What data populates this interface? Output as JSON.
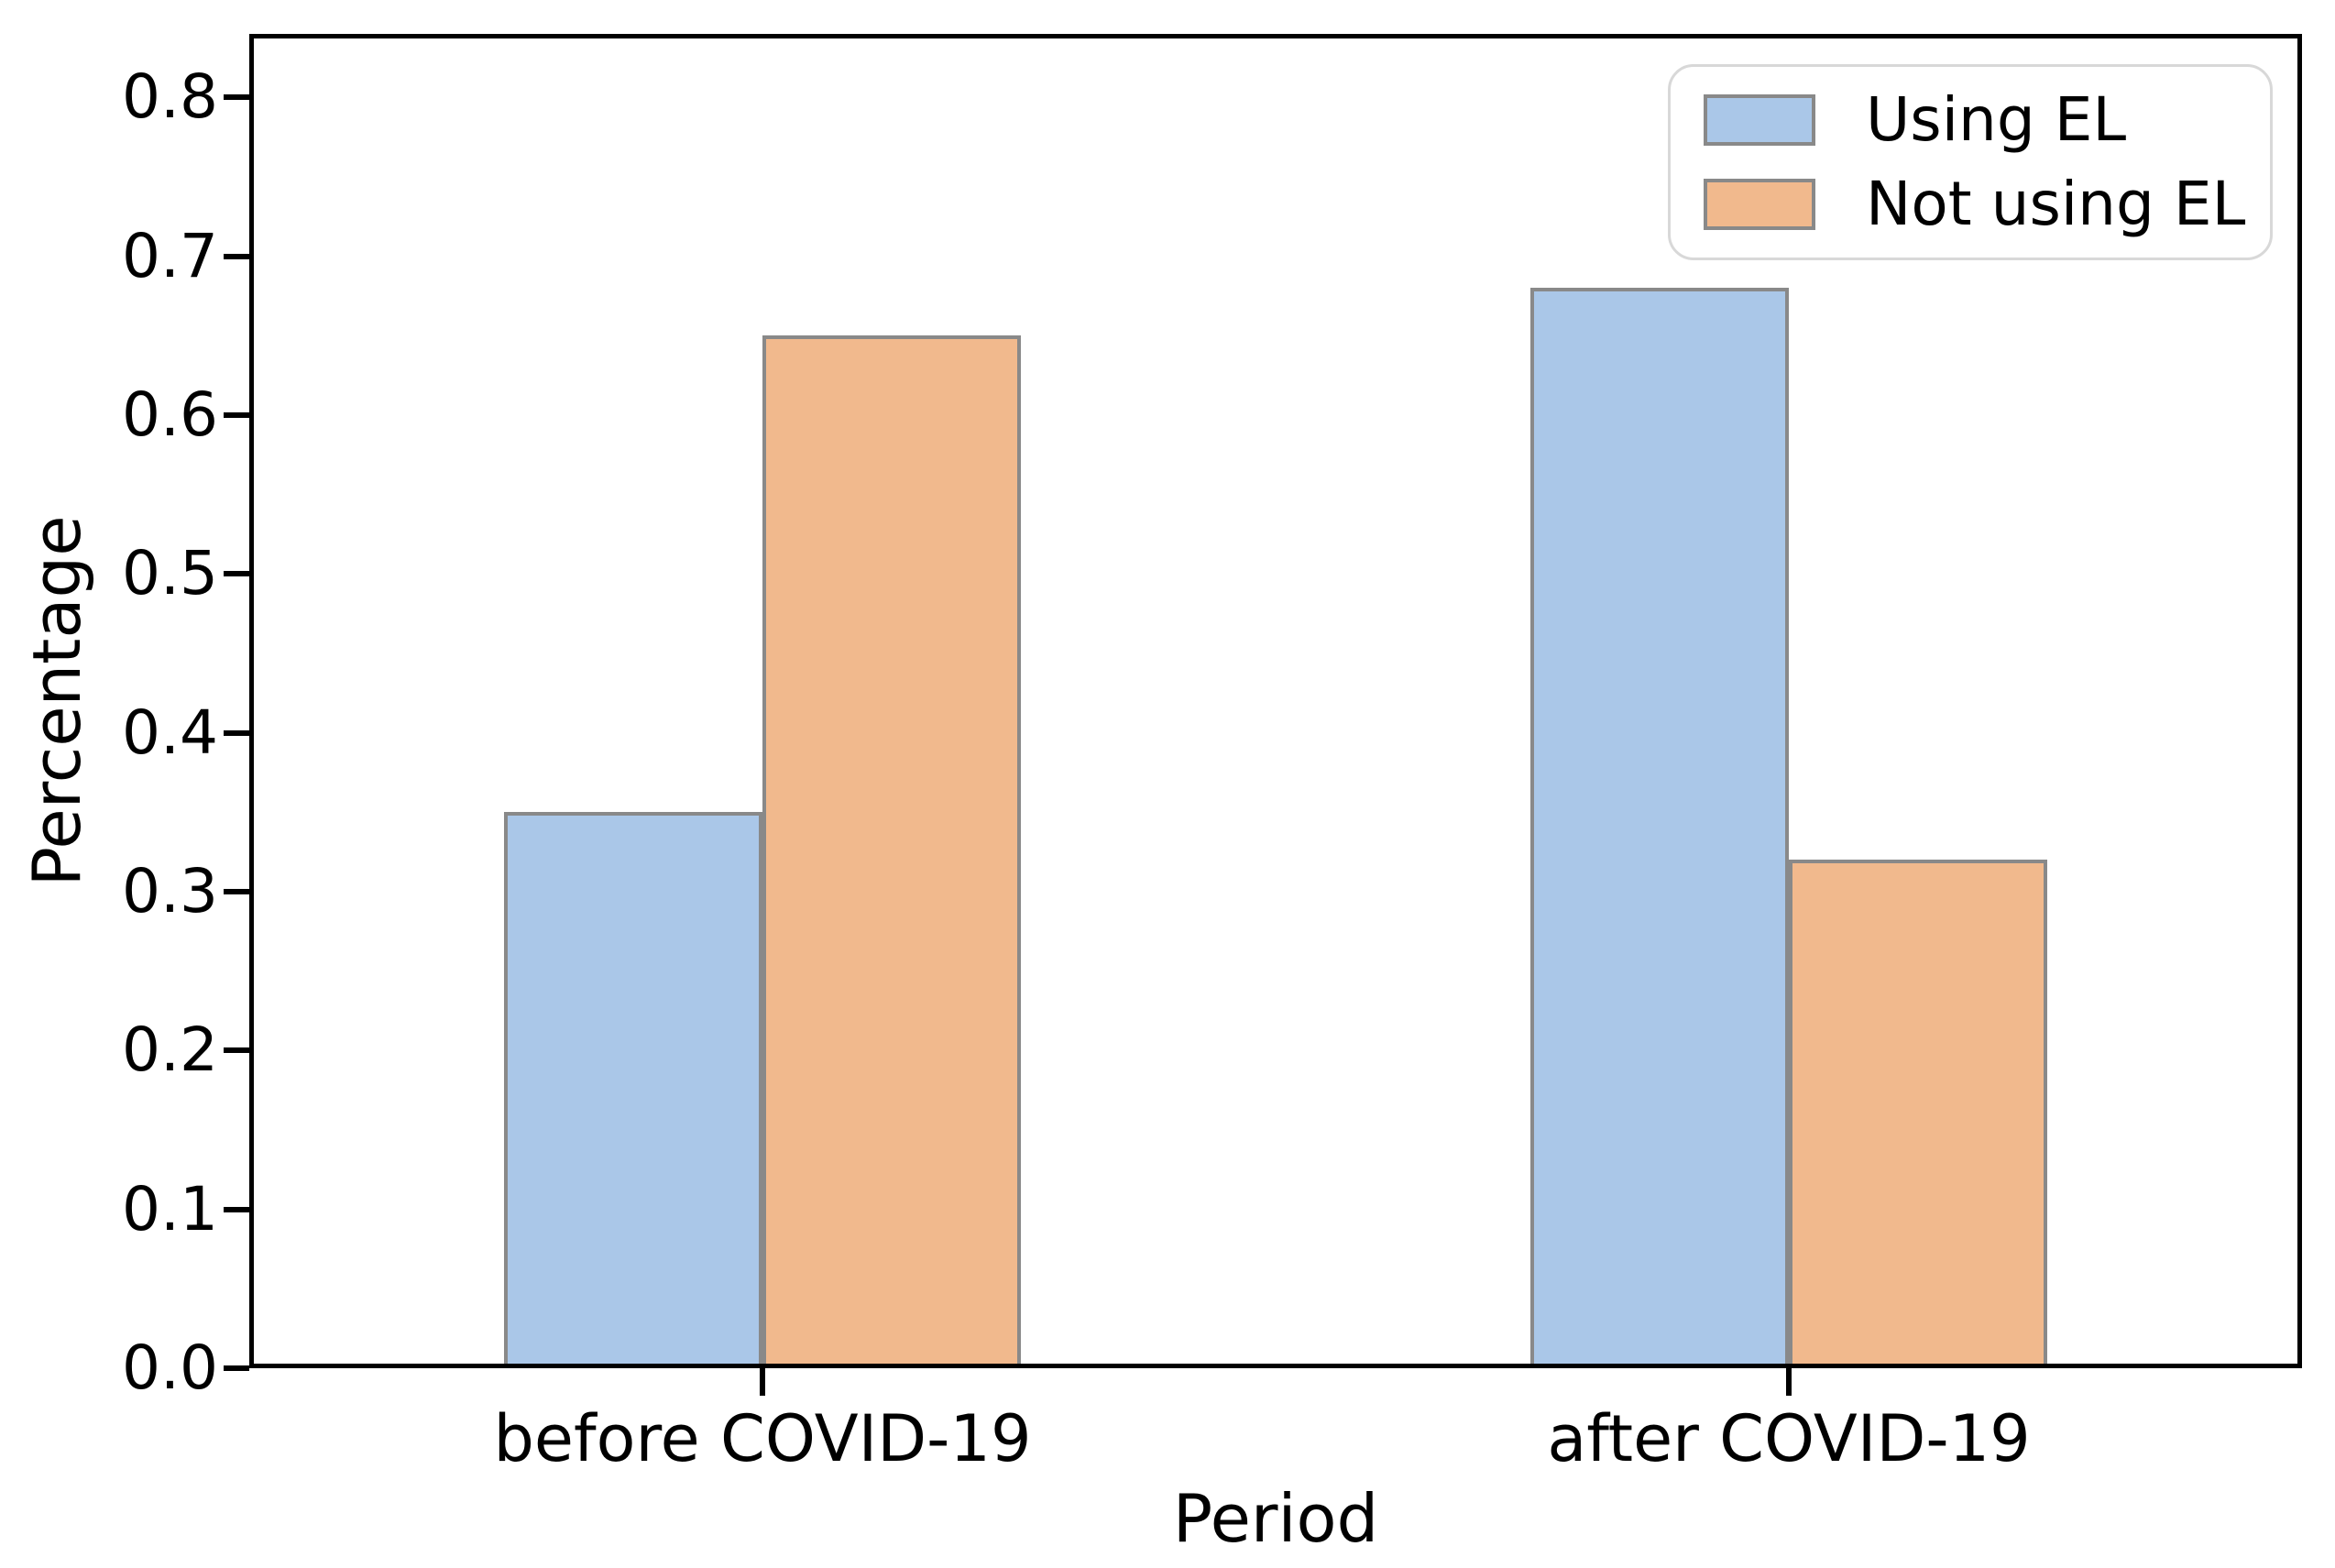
{
  "chart_data": {
    "type": "bar",
    "categories": [
      "before COVID-19",
      "after COVID-19"
    ],
    "series": [
      {
        "name": "Using EL",
        "color": "#aac7e8",
        "values": [
          0.35,
          0.68
        ]
      },
      {
        "name": "Not using EL",
        "color": "#f1b98d",
        "values": [
          0.65,
          0.32
        ]
      }
    ],
    "bar_edge_color": "#898989",
    "xlabel": "Period",
    "ylabel": "Percentage",
    "ylim": [
      0,
      0.84
    ],
    "yticks": [
      0,
      0.1,
      0.2,
      0.3,
      0.4,
      0.5,
      0.6,
      0.7,
      0.8
    ],
    "ytick_labels": [
      "0.0",
      "0.1",
      "0.2",
      "0.3",
      "0.4",
      "0.5",
      "0.6",
      "0.7",
      "0.8"
    ],
    "legend": {
      "position": "upper right",
      "entries": [
        "Using EL",
        "Not using EL"
      ]
    },
    "grid": false,
    "axis_color": "#000000",
    "background_color": "#ffffff"
  }
}
